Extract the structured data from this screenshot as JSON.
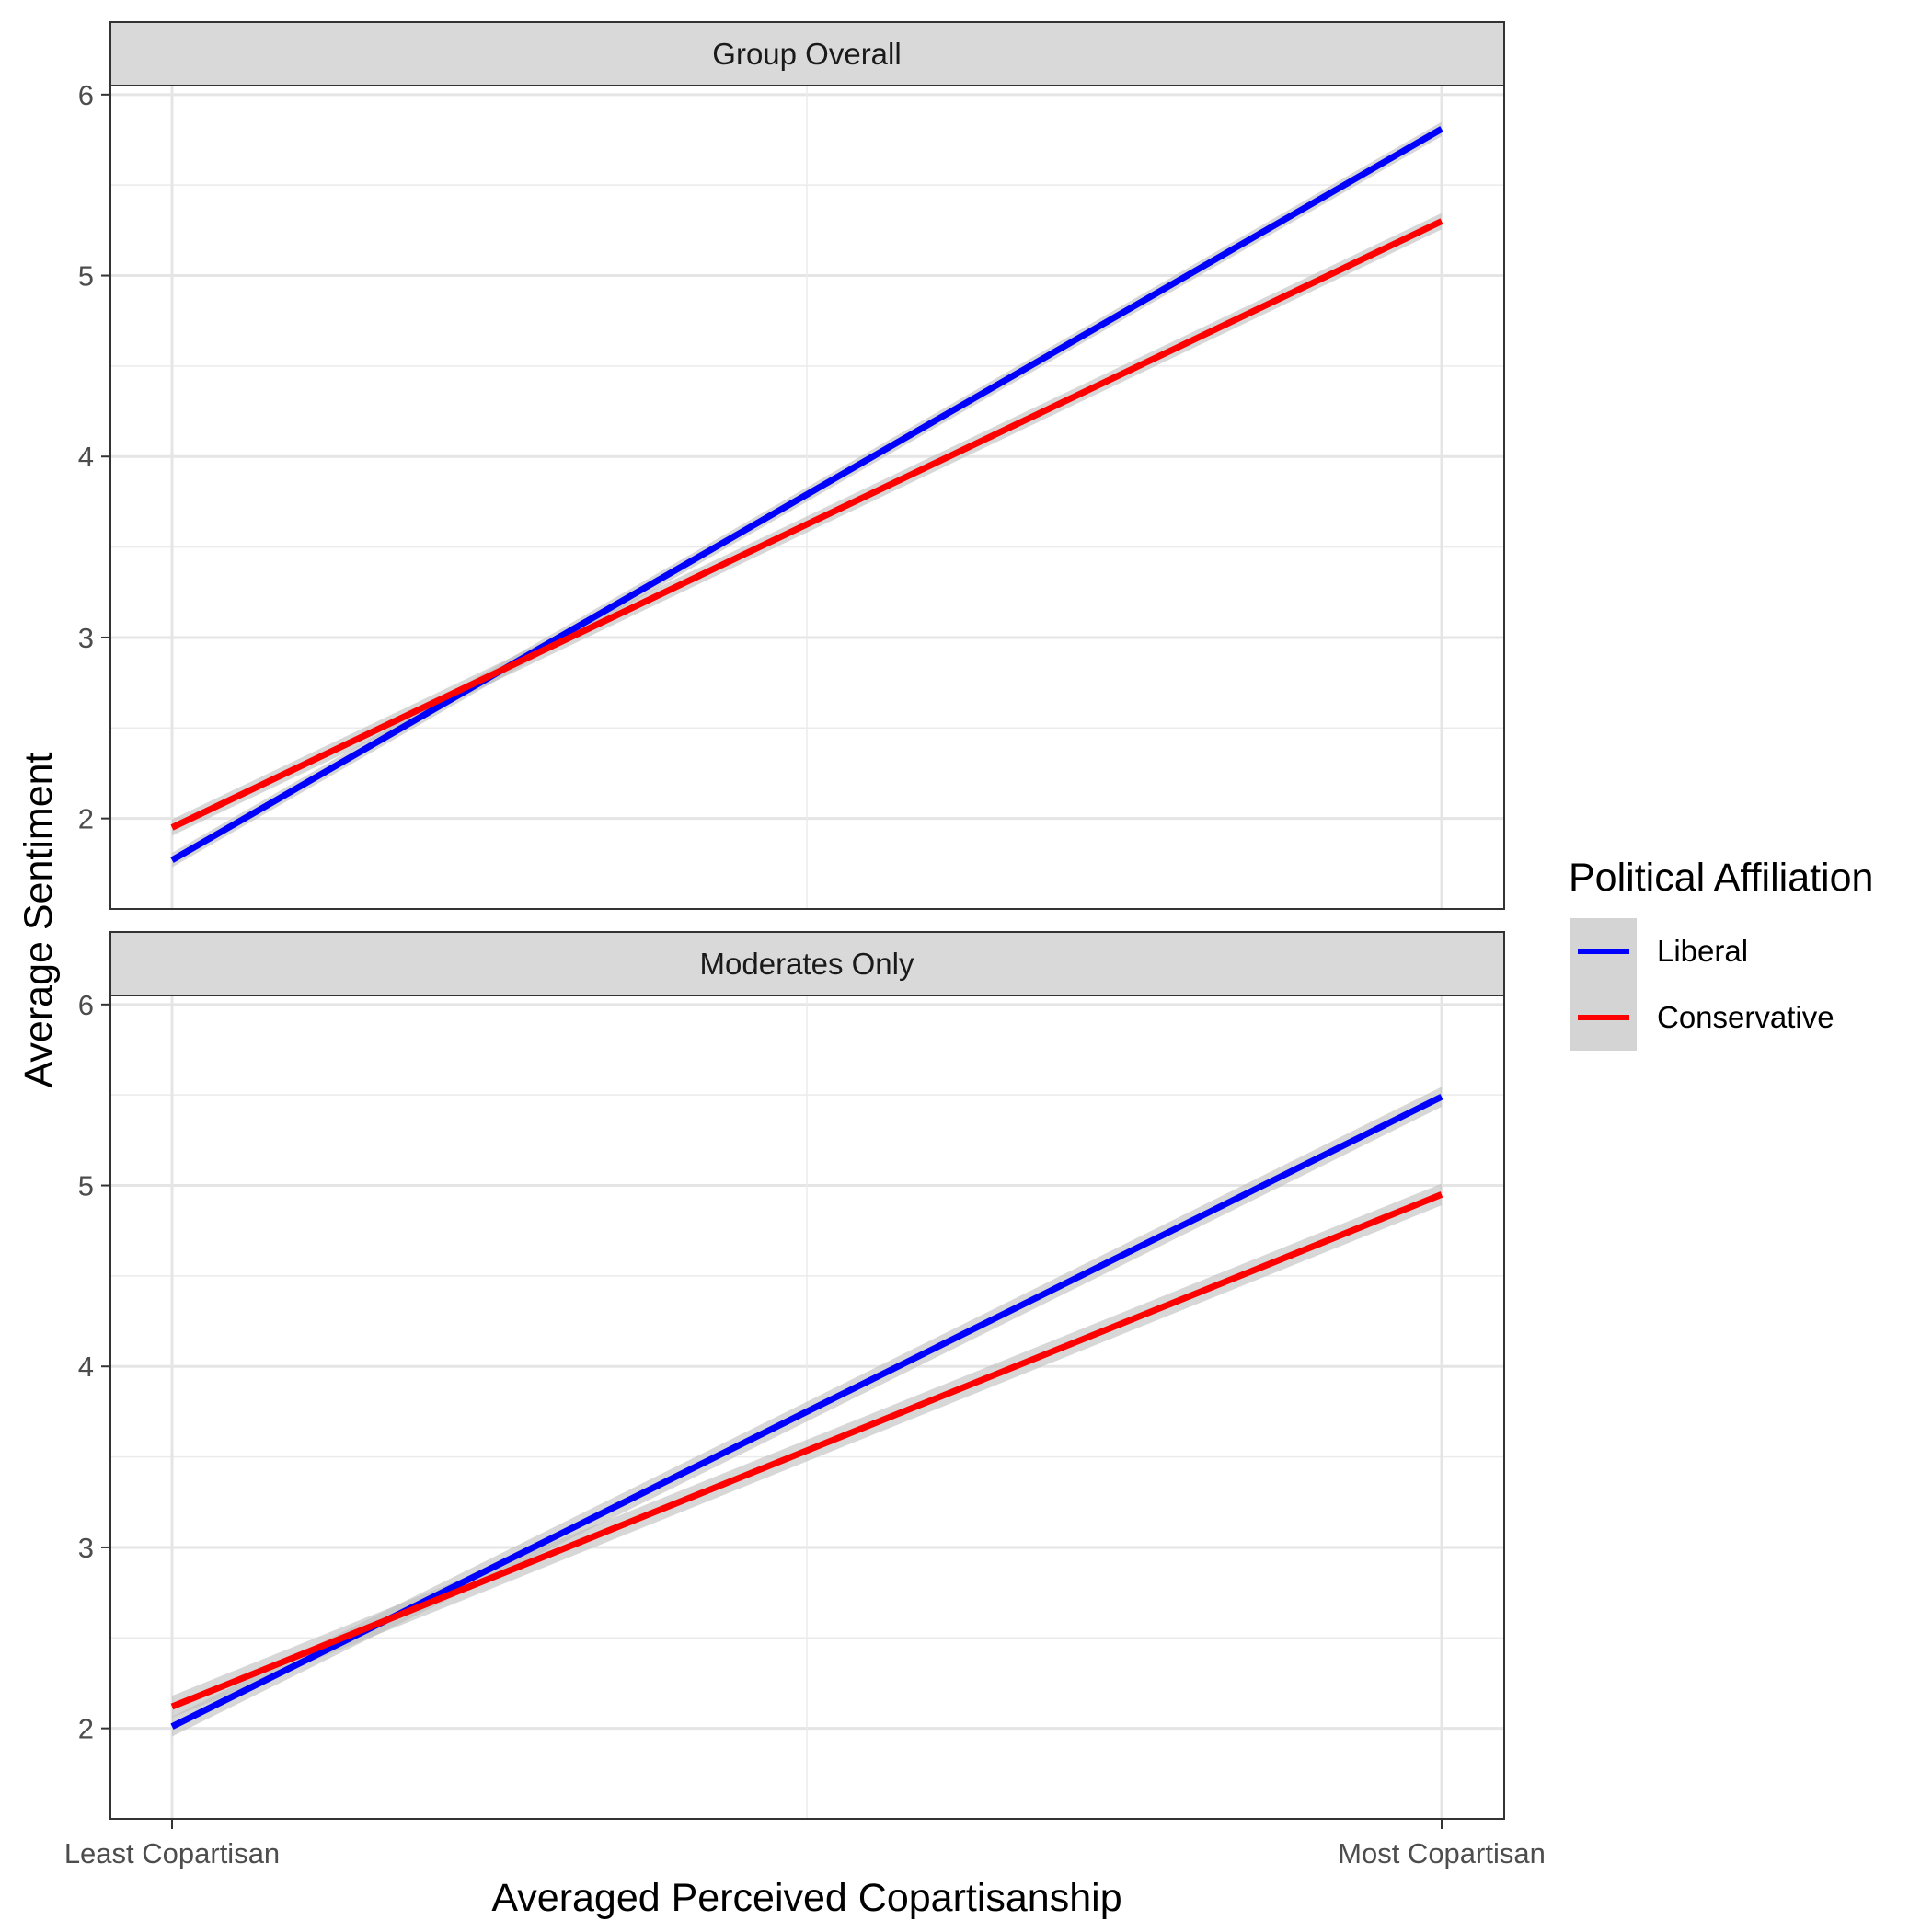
{
  "chart_data": {
    "type": "line",
    "xlabel": "Averaged Perceived Copartisanship",
    "ylabel": "Average Sentiment",
    "x_tick_labels": [
      "Least Copartisan",
      "Most Copartisan"
    ],
    "ylim": [
      1.5,
      6.05
    ],
    "y_ticks": [
      2,
      3,
      4,
      5,
      6
    ],
    "grid": true,
    "legend": {
      "title": "Political Affiliation",
      "position": "right",
      "entries": [
        "Liberal",
        "Conservative"
      ]
    },
    "panels": [
      {
        "title": "Group Overall",
        "series": [
          {
            "name": "Liberal",
            "color": "#0000ff",
            "x": [
              0,
              1
            ],
            "y": [
              1.77,
              5.81
            ],
            "ci_halfwidth": 0.04
          },
          {
            "name": "Conservative",
            "color": "#ff0000",
            "x": [
              0,
              1
            ],
            "y": [
              1.95,
              5.3
            ],
            "ci_halfwidth": 0.045
          }
        ]
      },
      {
        "title": "Moderates Only",
        "series": [
          {
            "name": "Liberal",
            "color": "#0000ff",
            "x": [
              0,
              1
            ],
            "y": [
              2.01,
              5.49
            ],
            "ci_halfwidth": 0.055
          },
          {
            "name": "Conservative",
            "color": "#ff0000",
            "x": [
              0,
              1
            ],
            "y": [
              2.12,
              4.95
            ],
            "ci_halfwidth": 0.06
          }
        ]
      }
    ]
  }
}
